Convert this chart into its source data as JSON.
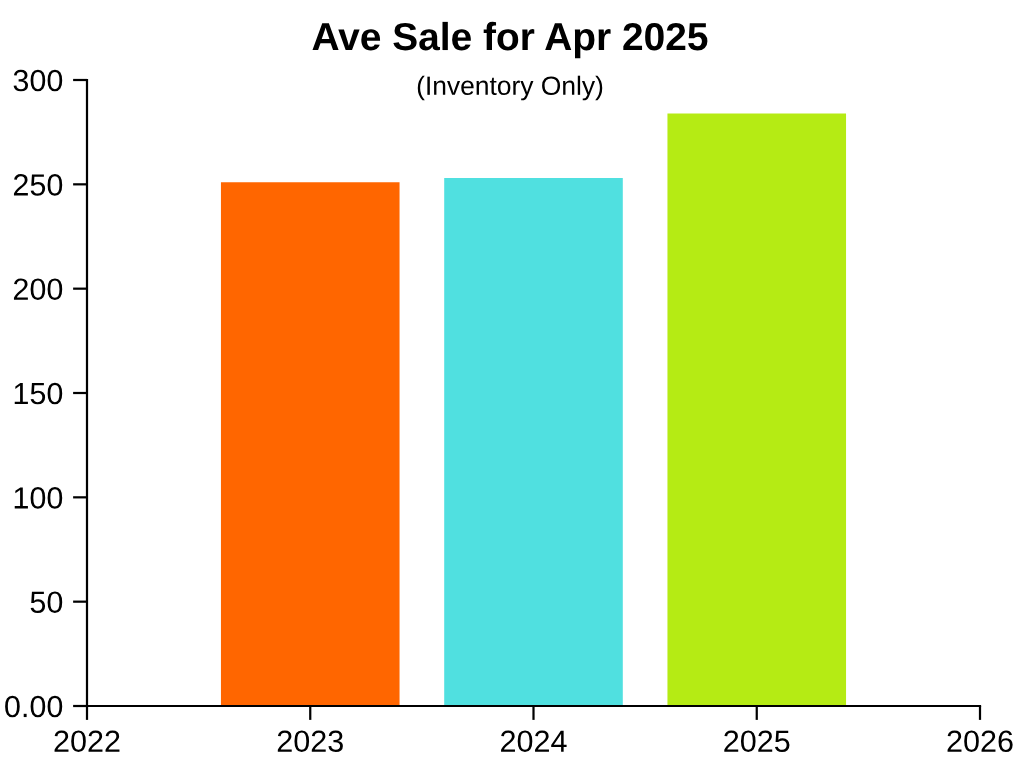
{
  "chart_data": {
    "type": "bar",
    "title": "Ave Sale for Apr 2025",
    "subtitle": "(Inventory Only)",
    "x": [
      2023,
      2024,
      2025
    ],
    "values": [
      251,
      253,
      284
    ],
    "colors": [
      "#ff6600",
      "#50e0e0",
      "#b5eb14"
    ],
    "xlim": [
      2022,
      2026
    ],
    "xticks": [
      2022,
      2023,
      2024,
      2025,
      2026
    ],
    "ylim": [
      0,
      300
    ],
    "yticks": [
      {
        "value": 0,
        "label": "0.00"
      },
      50,
      100,
      150,
      200,
      250,
      300
    ],
    "grid": false,
    "legend": false
  }
}
